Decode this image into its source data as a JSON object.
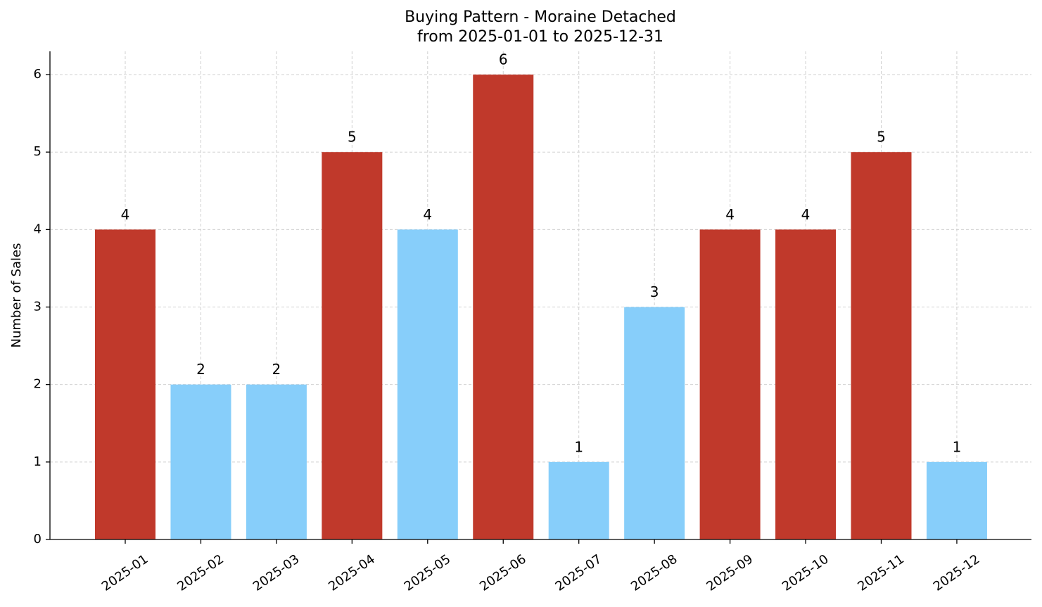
{
  "chart_data": {
    "type": "bar",
    "title": "Buying Pattern - Moraine Detached",
    "subtitle": "from 2025-01-01 to 2025-12-31",
    "y_label": "Number of Sales",
    "categories": [
      "2025-01",
      "2025-02",
      "2025-03",
      "2025-04",
      "2025-05",
      "2025-06",
      "2025-07",
      "2025-08",
      "2025-09",
      "2025-10",
      "2025-11",
      "2025-12"
    ],
    "values": [
      4,
      2,
      2,
      5,
      4,
      6,
      1,
      3,
      4,
      4,
      5,
      1
    ],
    "colors": [
      "#c0392b",
      "#87cefa",
      "#87cefa",
      "#c0392b",
      "#87cefa",
      "#c0392b",
      "#87cefa",
      "#87cefa",
      "#c0392b",
      "#c0392b",
      "#c0392b",
      "#87cefa"
    ],
    "ylim": [
      0,
      6.3
    ],
    "yticks": [
      0,
      1,
      2,
      3,
      4,
      5,
      6
    ],
    "grid": true
  }
}
